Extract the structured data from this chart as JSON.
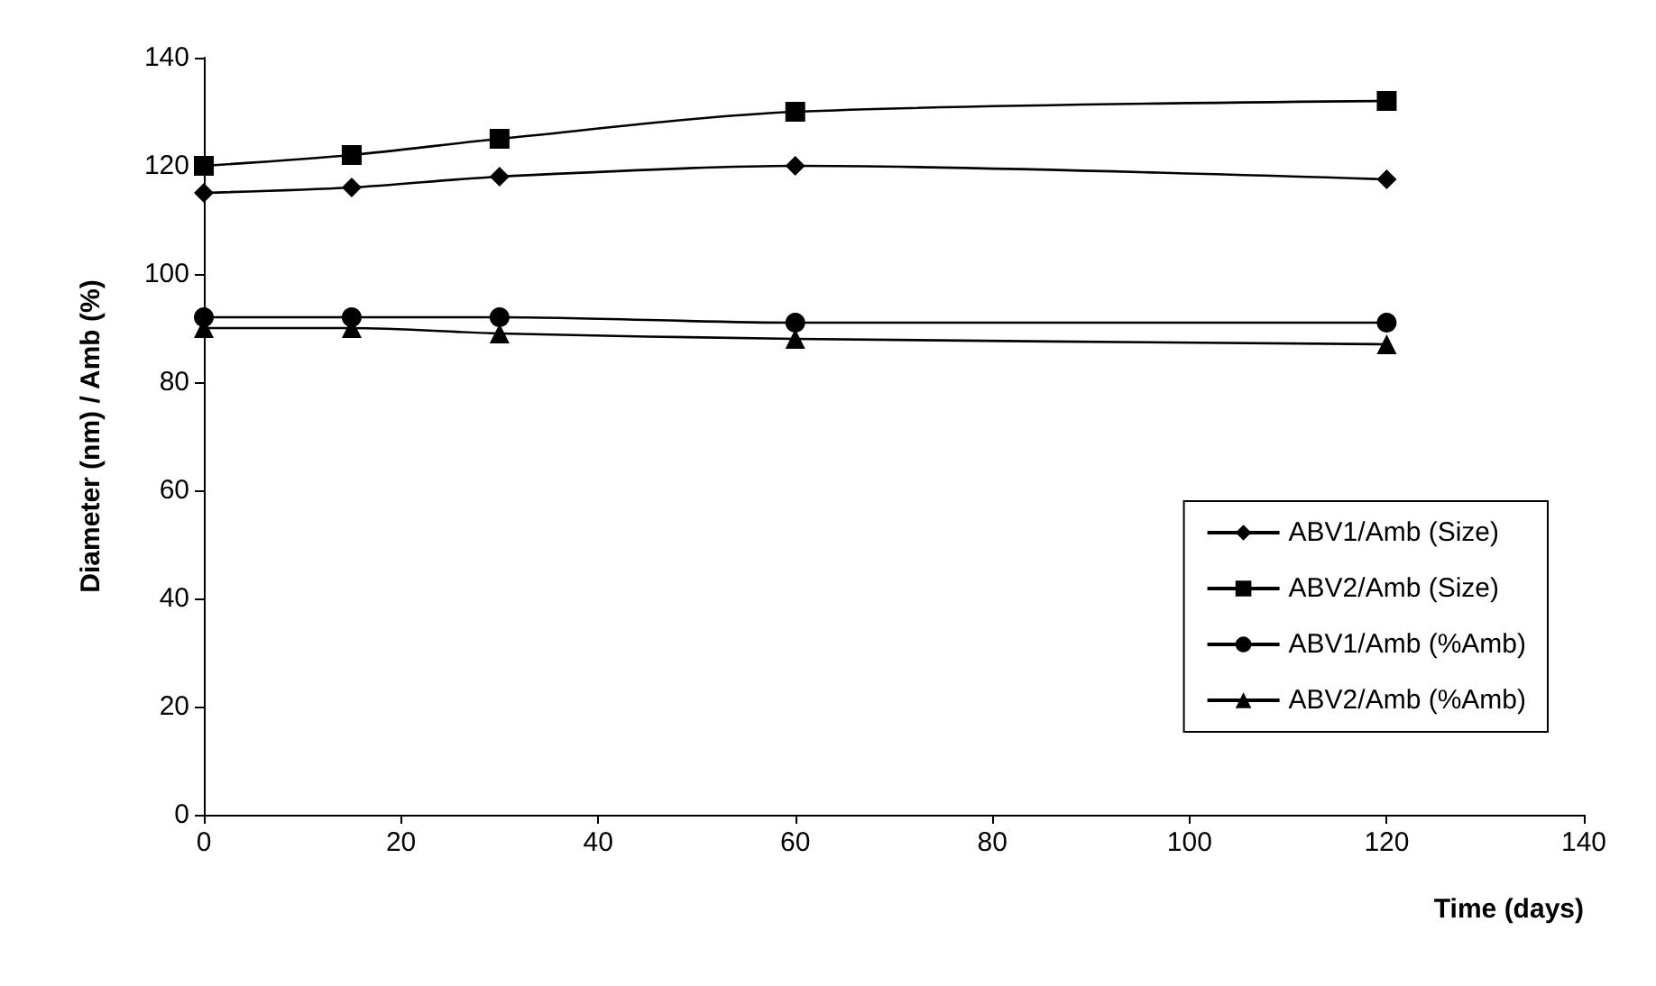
{
  "chart_data": {
    "type": "line",
    "xlabel": "Time (days)",
    "ylabel": "Diameter (nm) / Amb (%)",
    "x": [
      0,
      15,
      30,
      60,
      120
    ],
    "series": [
      {
        "name": "ABV1/Amb (Size)",
        "color": "#000000",
        "marker": "diamond",
        "values": [
          115,
          116,
          118,
          120,
          117.5
        ]
      },
      {
        "name": "ABV2/Amb (Size)",
        "color": "#000000",
        "marker": "square",
        "values": [
          120,
          122,
          125,
          130,
          132
        ]
      },
      {
        "name": "ABV1/Amb (%Amb)",
        "color": "#000000",
        "marker": "circle",
        "values": [
          92,
          92,
          92,
          91,
          91
        ]
      },
      {
        "name": "ABV2/Amb (%Amb)",
        "color": "#000000",
        "marker": "triangle",
        "values": [
          90,
          90,
          89,
          88,
          87
        ]
      }
    ],
    "xlim": [
      0,
      140
    ],
    "xticks": [
      0,
      20,
      40,
      60,
      80,
      100,
      120,
      140
    ],
    "ylim": [
      0,
      140
    ],
    "yticks": [
      0,
      20,
      40,
      60,
      80,
      100,
      120,
      140
    ],
    "grid": false,
    "legend": "right",
    "line_style": "solid"
  }
}
